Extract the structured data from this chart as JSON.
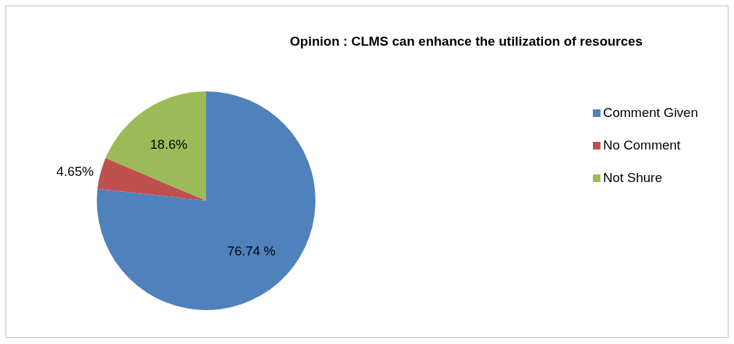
{
  "chart_data": {
    "type": "pie",
    "title": "Opinion : CLMS can enhance the utilization of resources",
    "categories": [
      "Comment Given",
      "No Comment",
      "Not Shure"
    ],
    "values": [
      76.74,
      4.65,
      18.6
    ],
    "value_labels": [
      "76.74 %",
      "4.65%",
      "18.6%"
    ],
    "colors": [
      "#4f81bd",
      "#c0504d",
      "#9bbb59"
    ],
    "legend": "right"
  }
}
